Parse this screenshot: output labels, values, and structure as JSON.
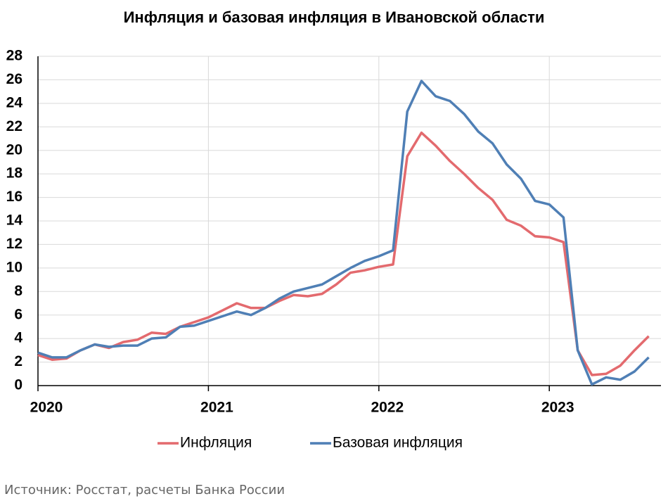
{
  "chart_data": {
    "type": "line",
    "title": "Инфляция и базовая инфляция в Ивановской области",
    "categories": [
      "2020",
      null,
      null,
      null,
      null,
      null,
      null,
      null,
      null,
      null,
      null,
      null,
      "2021",
      null,
      null,
      null,
      null,
      null,
      null,
      null,
      null,
      null,
      null,
      null,
      "2022",
      null,
      null,
      null,
      null,
      null,
      null,
      null,
      null,
      null,
      null,
      null,
      "2023",
      null,
      null,
      null,
      null,
      null,
      null,
      null
    ],
    "series": [
      {
        "name": "Инфляция",
        "color": "#e36a6e",
        "values": [
          2.6,
          2.2,
          2.3,
          3.0,
          3.5,
          3.2,
          3.7,
          3.9,
          4.5,
          4.4,
          5.0,
          5.4,
          5.8,
          6.4,
          7.0,
          6.6,
          6.6,
          7.2,
          7.7,
          7.6,
          7.8,
          8.6,
          9.6,
          9.8,
          10.1,
          10.3,
          19.5,
          21.5,
          20.4,
          19.1,
          18.0,
          16.8,
          15.8,
          14.1,
          13.6,
          12.7,
          12.6,
          12.2,
          3.0,
          0.9,
          1.0,
          1.7,
          3.0,
          4.2
        ]
      },
      {
        "name": "Базовая инфляция",
        "color": "#4f7fb5",
        "values": [
          2.8,
          2.4,
          2.4,
          3.0,
          3.5,
          3.3,
          3.4,
          3.4,
          4.0,
          4.1,
          5.0,
          5.1,
          5.5,
          5.9,
          6.3,
          6.0,
          6.6,
          7.4,
          8.0,
          8.3,
          8.6,
          9.3,
          10.0,
          10.6,
          11.0,
          11.5,
          23.3,
          25.9,
          24.6,
          24.2,
          23.1,
          21.6,
          20.6,
          18.8,
          17.6,
          15.7,
          15.4,
          14.3,
          3.0,
          0.1,
          0.7,
          0.5,
          1.2,
          2.4
        ]
      }
    ],
    "ylim": [
      0,
      28
    ],
    "yticks": [
      0,
      2,
      4,
      6,
      8,
      10,
      12,
      14,
      16,
      18,
      20,
      22,
      24,
      26,
      28
    ],
    "grid": true,
    "legend": "bottom",
    "source": "Источник: Росстат, расчеты Банка России"
  }
}
